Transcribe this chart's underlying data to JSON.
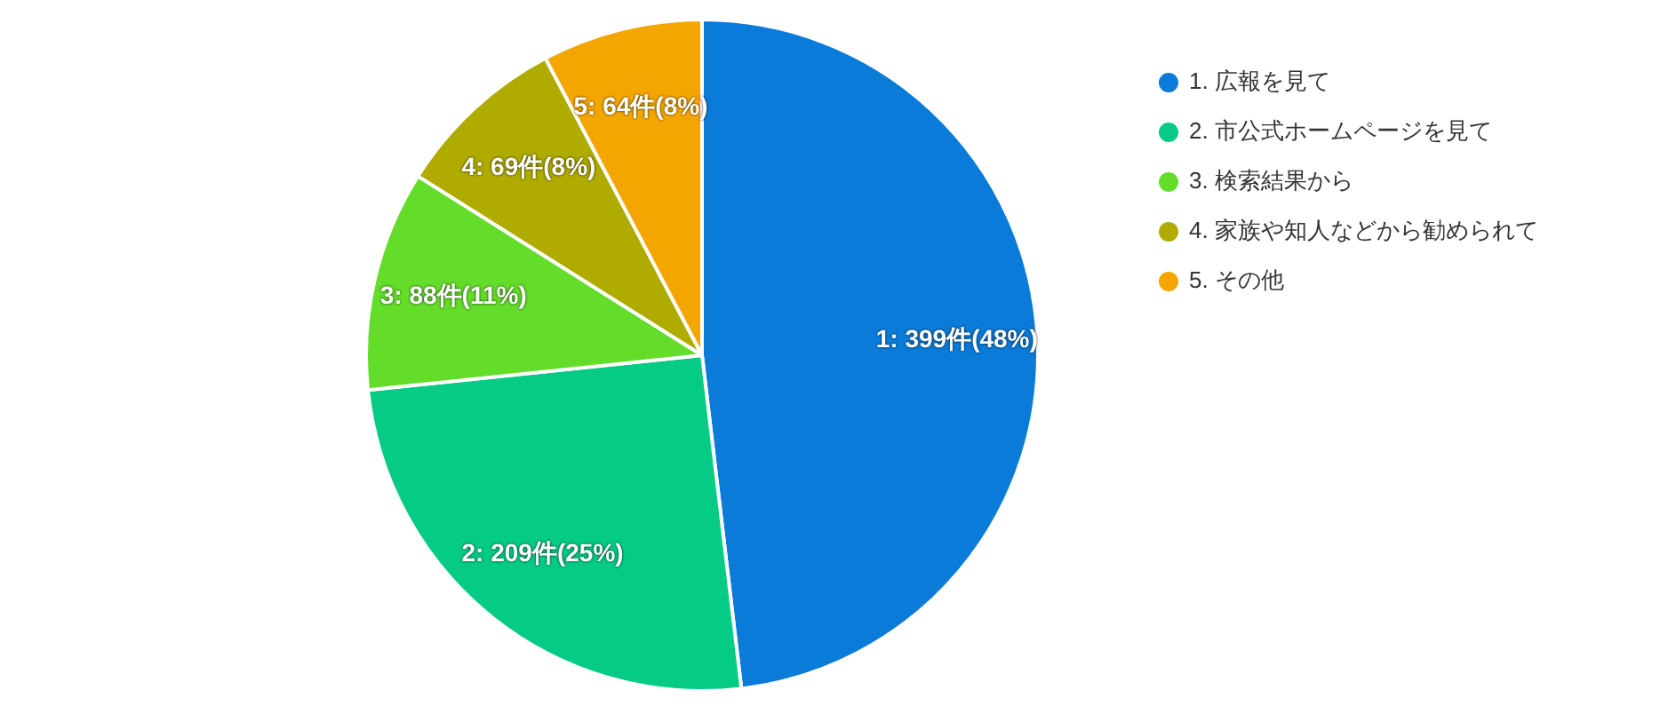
{
  "chart_data": {
    "type": "pie",
    "categories": [
      "1. 広報を見て",
      "2. 市公式ホームページを見て",
      "3. 検索結果から",
      "4. 家族や知人などから勧められて",
      "5. その他"
    ],
    "values": [
      399,
      209,
      88,
      69,
      64
    ],
    "colors": [
      "#0a7bd8",
      "#05cb85",
      "#64dd2a",
      "#afab00",
      "#f4a600"
    ],
    "value_labels": [
      "1: 399件(48%)",
      "2: 209件(25%)",
      "3: 88件(11%)",
      "4: 69件(8%)",
      "5: 64件(8%)"
    ],
    "legend": "top right"
  }
}
